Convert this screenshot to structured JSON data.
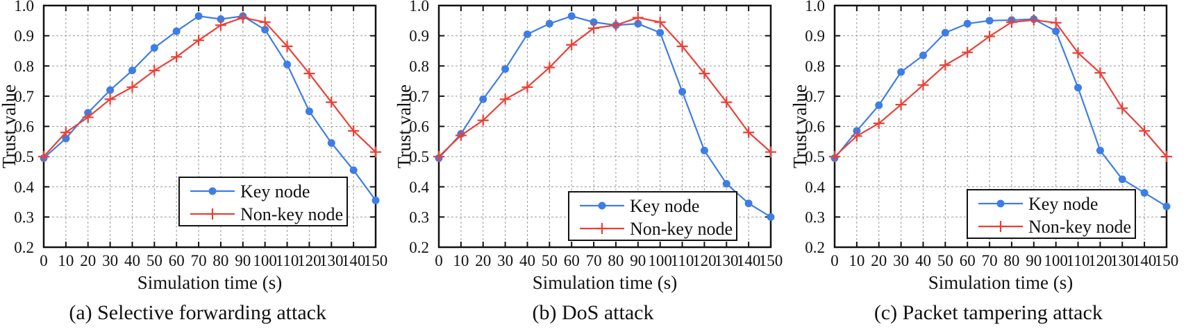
{
  "figure": {
    "background": "#ffffff",
    "colors": {
      "key_node": "#3e7de6",
      "non_key_node": "#ea4036",
      "grid": "#999999",
      "axis": "#111111",
      "text": "#111111",
      "legend_bg": "#ffffff"
    }
  },
  "chart_data": [
    {
      "type": "line",
      "caption": "(a) Selective forwarding attack",
      "xlabel": "Simulation time (s)",
      "ylabel": "Trust value",
      "xlim": [
        0,
        150
      ],
      "ylim": [
        0.2,
        1.0
      ],
      "xticks": [
        0,
        10,
        20,
        30,
        40,
        50,
        60,
        70,
        80,
        90,
        100,
        110,
        120,
        130,
        140,
        150
      ],
      "yticks": [
        0.2,
        0.3,
        0.4,
        0.5,
        0.6,
        0.7,
        0.8,
        0.9,
        1.0
      ],
      "grid": true,
      "legend_position": "lower-right",
      "legend_xy": [
        258,
        256
      ],
      "x": [
        0,
        10,
        20,
        30,
        40,
        50,
        60,
        70,
        80,
        90,
        100,
        110,
        120,
        130,
        140,
        150
      ],
      "series": [
        {
          "name": "Key node",
          "color": "#3e7de6",
          "marker": "circle-icon",
          "values": [
            0.495,
            0.56,
            0.645,
            0.72,
            0.785,
            0.86,
            0.915,
            0.965,
            0.955,
            0.965,
            0.92,
            0.805,
            0.65,
            0.545,
            0.455,
            0.355
          ]
        },
        {
          "name": "Non-key node",
          "color": "#ea4036",
          "marker": "plus-icon",
          "values": [
            0.5,
            0.58,
            0.63,
            0.69,
            0.73,
            0.785,
            0.83,
            0.885,
            0.935,
            0.96,
            0.945,
            0.865,
            0.775,
            0.68,
            0.585,
            0.515
          ]
        }
      ]
    },
    {
      "type": "line",
      "caption": "(b) DoS attack",
      "xlabel": "Simulation time (s)",
      "ylabel": "Trust value",
      "xlim": [
        0,
        150
      ],
      "ylim": [
        0.2,
        1.0
      ],
      "xticks": [
        0,
        10,
        20,
        30,
        40,
        50,
        60,
        70,
        80,
        90,
        100,
        110,
        120,
        130,
        140,
        150
      ],
      "yticks": [
        0.2,
        0.3,
        0.4,
        0.5,
        0.6,
        0.7,
        0.8,
        0.9,
        1.0
      ],
      "grid": true,
      "legend_position": "lower-right",
      "legend_xy": [
        250,
        277
      ],
      "x": [
        0,
        10,
        20,
        30,
        40,
        50,
        60,
        70,
        80,
        90,
        100,
        110,
        120,
        130,
        140,
        150
      ],
      "series": [
        {
          "name": "Key node",
          "color": "#3e7de6",
          "marker": "circle-icon",
          "values": [
            0.495,
            0.575,
            0.69,
            0.79,
            0.905,
            0.94,
            0.965,
            0.945,
            0.935,
            0.94,
            0.91,
            0.715,
            0.52,
            0.41,
            0.345,
            0.3
          ]
        },
        {
          "name": "Non-key node",
          "color": "#ea4036",
          "marker": "plus-icon",
          "values": [
            0.5,
            0.57,
            0.62,
            0.69,
            0.73,
            0.795,
            0.87,
            0.925,
            0.935,
            0.96,
            0.945,
            0.865,
            0.775,
            0.68,
            0.58,
            0.515
          ]
        }
      ]
    },
    {
      "type": "line",
      "caption": "(c) Packet tampering attack",
      "xlabel": "Simulation time (s)",
      "ylabel": "Trust value",
      "xlim": [
        0,
        150
      ],
      "ylim": [
        0.2,
        1.0
      ],
      "xticks": [
        0,
        10,
        20,
        30,
        40,
        50,
        60,
        70,
        80,
        90,
        100,
        110,
        120,
        130,
        140,
        150
      ],
      "yticks": [
        0.2,
        0.3,
        0.4,
        0.5,
        0.6,
        0.7,
        0.8,
        0.9,
        1.0
      ],
      "grid": true,
      "legend_position": "lower-right",
      "legend_xy": [
        254,
        274
      ],
      "x": [
        0,
        10,
        20,
        30,
        40,
        50,
        60,
        70,
        80,
        90,
        100,
        110,
        120,
        130,
        140,
        150
      ],
      "series": [
        {
          "name": "Key node",
          "color": "#3e7de6",
          "marker": "circle-icon",
          "values": [
            0.495,
            0.585,
            0.67,
            0.78,
            0.835,
            0.91,
            0.94,
            0.95,
            0.952,
            0.955,
            0.915,
            0.728,
            0.52,
            0.425,
            0.38,
            0.335
          ]
        },
        {
          "name": "Non-key node",
          "color": "#ea4036",
          "marker": "plus-icon",
          "values": [
            0.5,
            0.568,
            0.61,
            0.672,
            0.737,
            0.803,
            0.845,
            0.898,
            0.945,
            0.952,
            0.943,
            0.843,
            0.777,
            0.66,
            0.585,
            0.5
          ]
        }
      ]
    }
  ]
}
